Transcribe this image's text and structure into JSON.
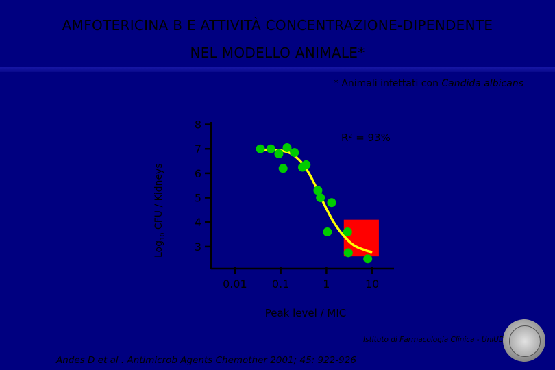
{
  "header": {
    "title_line1": "AMFOTERICINA B E ATTIVITÀ CONCENTRAZIONE-DIPENDENTE",
    "title_line2": "NEL MODELLO ANIMALE*",
    "note_prefix": "* Animali infettati con ",
    "note_organism": "Candida albicans"
  },
  "chart_data": {
    "type": "scatter",
    "xlabel": "Peak level / MIC",
    "ylabel_base": "Log",
    "ylabel_sub": "10",
    "ylabel_rest": " CFU / Kidneys",
    "x_scale": "log",
    "xlim": [
      0.003,
      30
    ],
    "ylim": [
      2.1,
      8.1
    ],
    "x_ticks": [
      0.01,
      0.1,
      1,
      10
    ],
    "x_tick_labels": [
      "0.01",
      "0.1",
      "1",
      "10"
    ],
    "y_ticks": [
      3,
      4,
      5,
      6,
      7,
      8
    ],
    "y_tick_labels": [
      "3",
      "4",
      "5",
      "6",
      "7",
      "8"
    ],
    "annotation": "R² = 93%",
    "highlight_region": {
      "x": [
        2.4,
        14
      ],
      "y": [
        2.6,
        4.1
      ],
      "color": "#ff0000"
    },
    "fit_color": "#ffff00",
    "point_color": "#00cc00",
    "points": [
      {
        "x": 0.036,
        "y": 7.0
      },
      {
        "x": 0.061,
        "y": 7.0
      },
      {
        "x": 0.091,
        "y": 6.8
      },
      {
        "x": 0.113,
        "y": 6.2
      },
      {
        "x": 0.138,
        "y": 7.05
      },
      {
        "x": 0.2,
        "y": 6.85
      },
      {
        "x": 0.3,
        "y": 6.25
      },
      {
        "x": 0.36,
        "y": 6.35
      },
      {
        "x": 0.65,
        "y": 5.3
      },
      {
        "x": 0.74,
        "y": 5.0
      },
      {
        "x": 1.3,
        "y": 4.8
      },
      {
        "x": 1.05,
        "y": 3.6
      },
      {
        "x": 2.9,
        "y": 3.6
      },
      {
        "x": 3.0,
        "y": 2.75
      },
      {
        "x": 8.0,
        "y": 2.5
      }
    ],
    "fit": [
      {
        "x": 0.036,
        "y": 6.96
      },
      {
        "x": 0.06,
        "y": 6.96
      },
      {
        "x": 0.1,
        "y": 6.93
      },
      {
        "x": 0.15,
        "y": 6.85
      },
      {
        "x": 0.2,
        "y": 6.72
      },
      {
        "x": 0.3,
        "y": 6.4
      },
      {
        "x": 0.4,
        "y": 6.05
      },
      {
        "x": 0.5,
        "y": 5.72
      },
      {
        "x": 0.7,
        "y": 5.15
      },
      {
        "x": 1.0,
        "y": 4.55
      },
      {
        "x": 1.5,
        "y": 3.95
      },
      {
        "x": 2.5,
        "y": 3.4
      },
      {
        "x": 4.0,
        "y": 3.05
      },
      {
        "x": 7.0,
        "y": 2.85
      },
      {
        "x": 9.5,
        "y": 2.78
      }
    ]
  },
  "footer": {
    "credit": "Istituto di Farmacologia Clinica - UniUD",
    "ref_prefix": "Andes D et al . ",
    "ref_journal": "Antimicrob Agents Chemother",
    "ref_suffix": " 2001; 45: 922-926"
  }
}
